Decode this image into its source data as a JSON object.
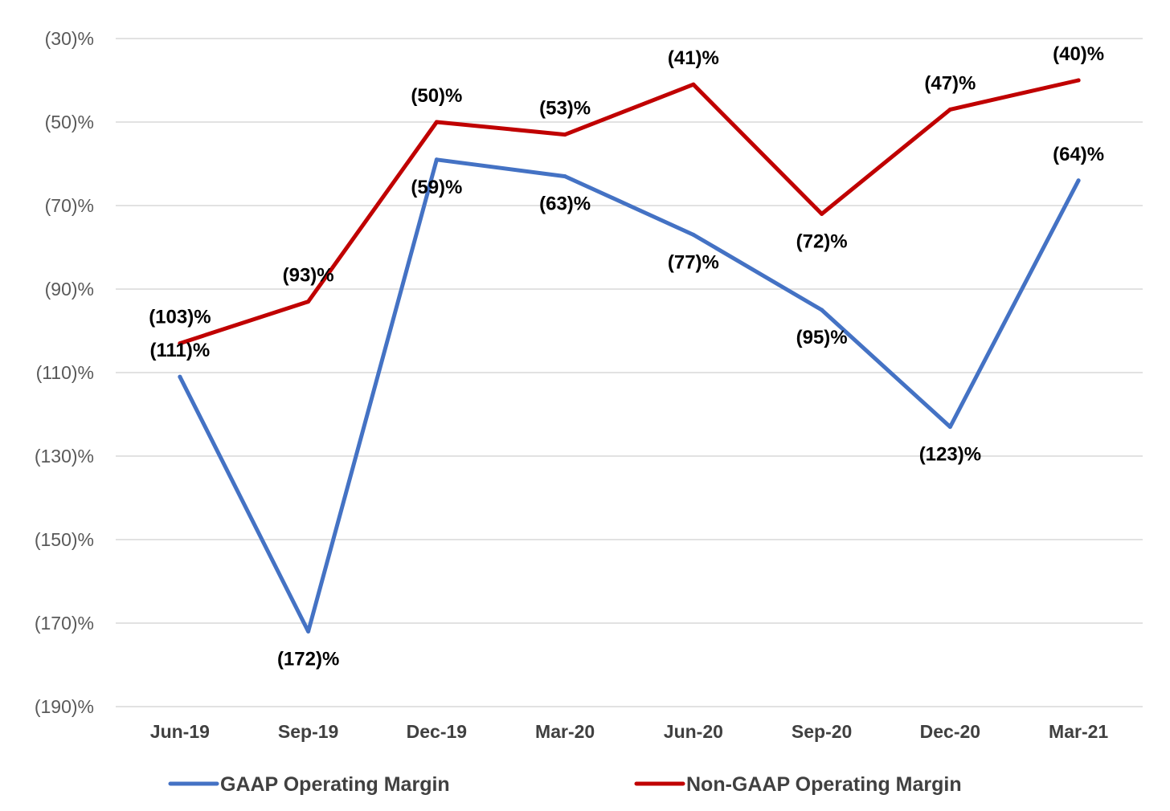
{
  "chart_data": {
    "type": "line",
    "title": "",
    "xlabel": "",
    "ylabel": "",
    "categories": [
      "Jun-19",
      "Sep-19",
      "Dec-19",
      "Mar-20",
      "Jun-20",
      "Sep-20",
      "Dec-20",
      "Mar-21"
    ],
    "ylim": [
      -190,
      -30
    ],
    "yticks": [
      -30,
      -50,
      -70,
      -90,
      -110,
      -130,
      -150,
      -170,
      -190
    ],
    "ytick_labels": [
      "(30)%",
      "(50)%",
      "(70)%",
      "(90)%",
      "(110)%",
      "(130)%",
      "(150)%",
      "(170)%",
      "(190)%"
    ],
    "grid": true,
    "legend_position": "bottom",
    "series": [
      {
        "name": "GAAP Operating Margin",
        "color": "#4472c4",
        "values": [
          -111,
          -172,
          -59,
          -63,
          -77,
          -95,
          -123,
          -64
        ],
        "labels": [
          "(111)%",
          "(172)%",
          "(59)%",
          "(63)%",
          "(77)%",
          "(95)%",
          "(123)%",
          "(64)%"
        ],
        "label_positions": [
          "above",
          "below",
          "below",
          "below",
          "below",
          "below",
          "below",
          "above"
        ]
      },
      {
        "name": "Non-GAAP Operating Margin",
        "color": "#c00000",
        "values": [
          -103,
          -93,
          -50,
          -53,
          -41,
          -72,
          -47,
          -40
        ],
        "labels": [
          "(103)%",
          "(93)%",
          "(50)%",
          "(53)%",
          "(41)%",
          "(72)%",
          "(47)%",
          "(40)%"
        ],
        "label_positions": [
          "above",
          "above",
          "above",
          "above",
          "above",
          "below",
          "above",
          "above"
        ]
      }
    ]
  }
}
